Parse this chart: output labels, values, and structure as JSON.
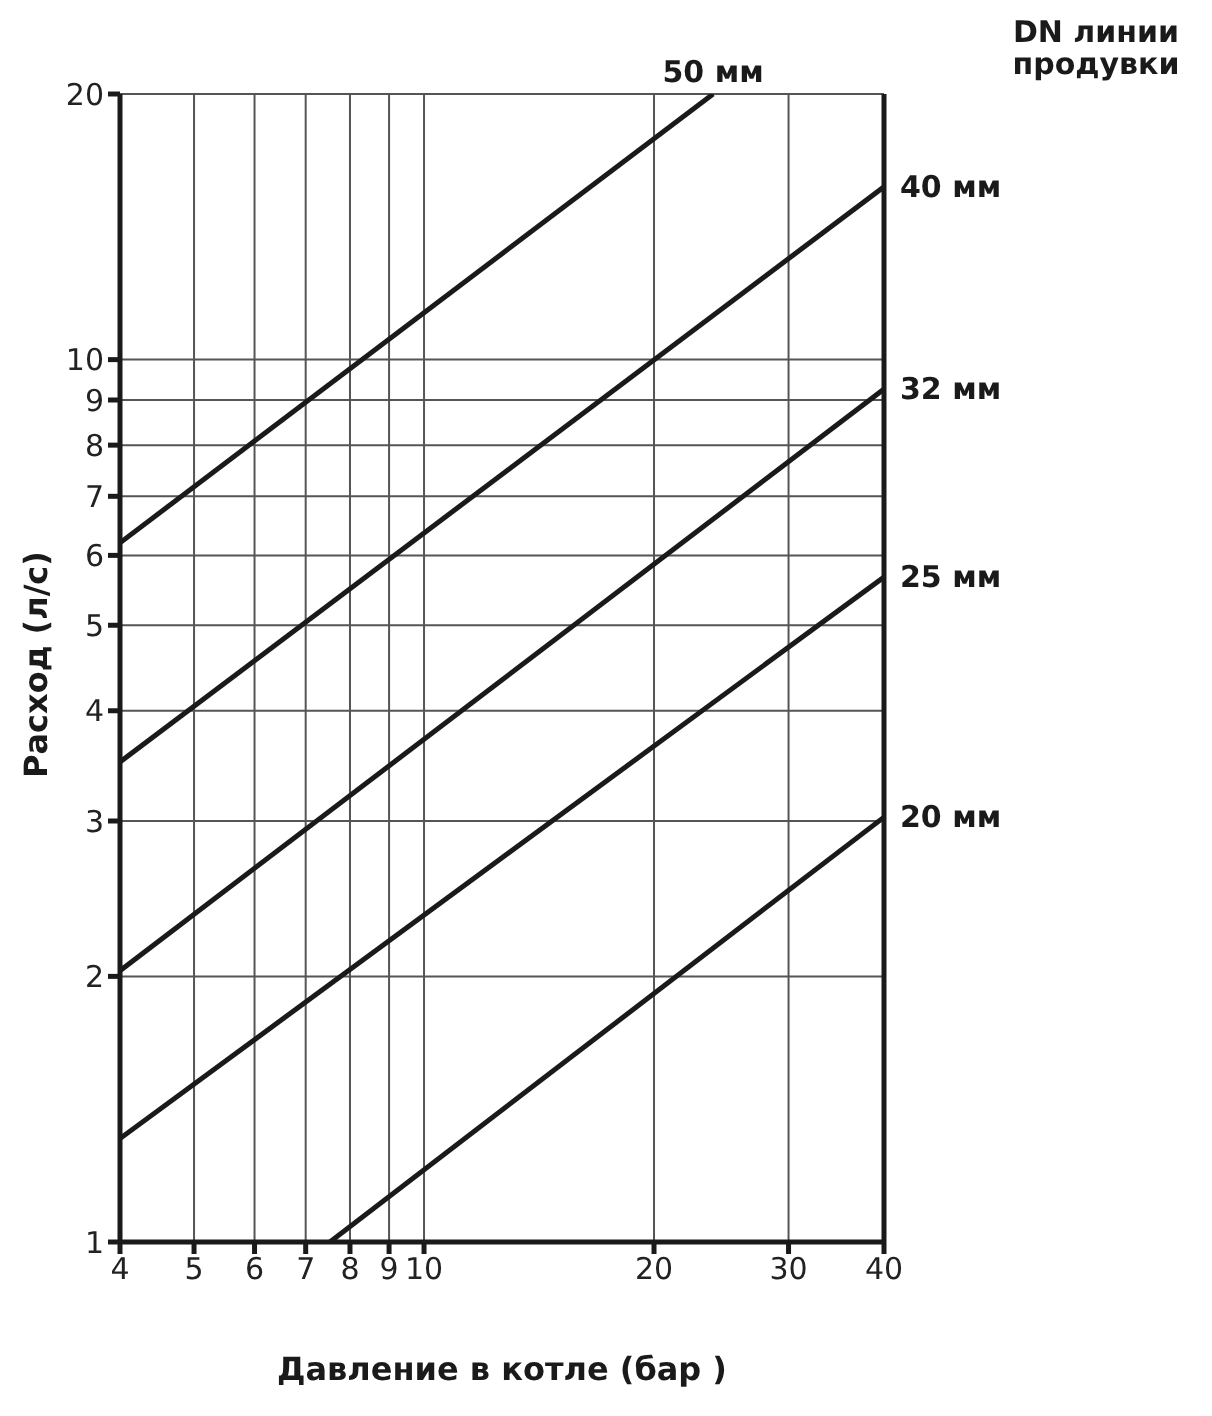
{
  "chart_data": {
    "type": "line",
    "xlabel": "Давление в котле (бар )",
    "ylabel": "Расход (л/с)",
    "legend_title": "DN линии продувки",
    "log": "xy",
    "grid": true,
    "marker": "none",
    "line_style": "solid",
    "xlim": [
      4,
      40
    ],
    "xticks": [
      4,
      5,
      6,
      7,
      8,
      9,
      10,
      20,
      30,
      40
    ],
    "ylim": [
      1,
      20
    ],
    "yticks": [
      1,
      2,
      3,
      4,
      5,
      6,
      7,
      8,
      9,
      10,
      20
    ],
    "series": [
      {
        "name": "50 мм",
        "color": "#1a1a1a",
        "x": [
          4,
          23.9
        ],
        "values": [
          6.2,
          20
        ]
      },
      {
        "name": "40 мм",
        "color": "#1a1a1a",
        "x": [
          4,
          40
        ],
        "values": [
          3.5,
          15.7
        ]
      },
      {
        "name": "32 мм",
        "color": "#1a1a1a",
        "x": [
          4,
          40
        ],
        "values": [
          2.03,
          9.26
        ]
      },
      {
        "name": "25 мм",
        "color": "#1a1a1a",
        "x": [
          4,
          40
        ],
        "values": [
          1.31,
          5.67
        ]
      },
      {
        "name": "20 мм",
        "color": "#1a1a1a",
        "x": [
          7.53,
          40
        ],
        "values": [
          1,
          3.03
        ]
      }
    ]
  }
}
